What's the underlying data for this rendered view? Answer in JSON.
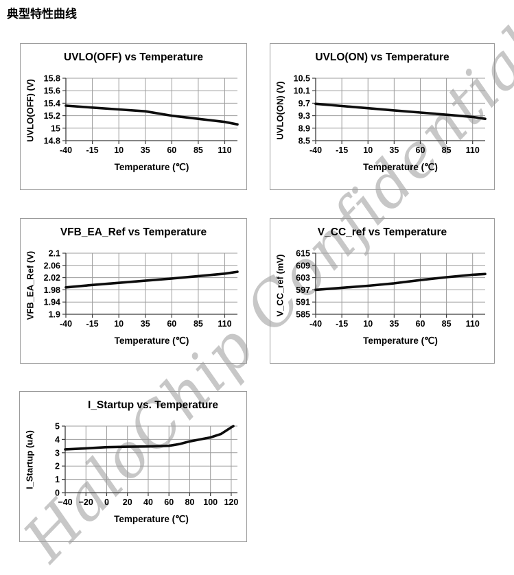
{
  "page_title": "典型特性曲线",
  "watermark": {
    "text": "HaloChip Confidential",
    "color": "#c7c7c7"
  },
  "chart_data": [
    {
      "type": "line",
      "title": "UVLO(OFF) vs Temperature",
      "xlabel": "Temperature (℃)",
      "ylabel": "UVLO(OFF) (V)",
      "xlim": [
        -40,
        122
      ],
      "ylim": [
        14.8,
        15.8
      ],
      "xticks": [
        -40,
        -15,
        10,
        35,
        60,
        85,
        110
      ],
      "yticks": [
        14.8,
        15,
        15.2,
        15.4,
        15.6,
        15.8
      ],
      "grid": true,
      "legend": false,
      "series": [
        {
          "name": "UVLO(OFF)",
          "x": [
            -40,
            -15,
            10,
            35,
            60,
            85,
            110,
            122
          ],
          "y": [
            15.36,
            15.33,
            15.3,
            15.27,
            15.2,
            15.15,
            15.1,
            15.06
          ]
        }
      ]
    },
    {
      "type": "line",
      "title": "UVLO(ON) vs Temperature",
      "xlabel": "Temperature (℃)",
      "ylabel": "UVLO(ON) (V)",
      "xlim": [
        -40,
        122
      ],
      "ylim": [
        8.5,
        10.5
      ],
      "xticks": [
        -40,
        -15,
        10,
        35,
        60,
        85,
        110
      ],
      "yticks": [
        8.5,
        8.9,
        9.3,
        9.7,
        10.1,
        10.5
      ],
      "grid": true,
      "legend": false,
      "series": [
        {
          "name": "UVLO(ON)",
          "x": [
            -40,
            -15,
            10,
            35,
            60,
            85,
            110,
            122
          ],
          "y": [
            9.68,
            9.61,
            9.54,
            9.47,
            9.4,
            9.33,
            9.26,
            9.2
          ]
        }
      ]
    },
    {
      "type": "line",
      "title": "VFB_EA_Ref vs Temperature",
      "xlabel": "Temperature (℃)",
      "ylabel": "VFB_EA_Ref (V)",
      "xlim": [
        -40,
        122
      ],
      "ylim": [
        1.9,
        2.1
      ],
      "xticks": [
        -40,
        -15,
        10,
        35,
        60,
        85,
        110
      ],
      "yticks": [
        1.9,
        1.94,
        1.98,
        2.02,
        2.06,
        2.1
      ],
      "grid": true,
      "legend": false,
      "series": [
        {
          "name": "VFB_EA_Ref",
          "x": [
            -40,
            -15,
            10,
            35,
            60,
            85,
            110,
            122
          ],
          "y": [
            1.988,
            1.996,
            2.003,
            2.01,
            2.017,
            2.025,
            2.033,
            2.039
          ]
        }
      ]
    },
    {
      "type": "line",
      "title": "V_CC_ref vs Temperature",
      "xlabel": "Temperature (℃)",
      "ylabel": "V_CC_ref (mV)",
      "xlim": [
        -40,
        122
      ],
      "ylim": [
        585,
        615
      ],
      "xticks": [
        -40,
        -15,
        10,
        35,
        60,
        85,
        110
      ],
      "yticks": [
        585,
        591,
        597,
        603,
        609,
        615
      ],
      "grid": true,
      "legend": false,
      "series": [
        {
          "name": "V_CC_ref",
          "x": [
            -40,
            -15,
            10,
            35,
            60,
            85,
            110,
            122
          ],
          "y": [
            597,
            598,
            599,
            600.2,
            601.8,
            603.2,
            604.4,
            604.8
          ]
        }
      ]
    },
    {
      "type": "line",
      "title": "I_Startup vs. Temperature",
      "xlabel": "Temperature (℃)",
      "ylabel": "I_Startup (uA)",
      "xlim": [
        -40,
        126
      ],
      "ylim": [
        0,
        5
      ],
      "xticks": [
        -40,
        -20,
        0,
        20,
        40,
        60,
        80,
        100,
        120
      ],
      "xtick_labels": [
        "−40",
        "−20",
        "0",
        "20",
        "40",
        "60",
        "80",
        "100",
        "120"
      ],
      "yticks": [
        0,
        1,
        2,
        3,
        4,
        5
      ],
      "grid": true,
      "legend": false,
      "series": [
        {
          "name": "I_Startup",
          "x": [
            -40,
            -20,
            0,
            20,
            40,
            60,
            70,
            80,
            90,
            100,
            110,
            120,
            122
          ],
          "y": [
            3.25,
            3.33,
            3.42,
            3.45,
            3.47,
            3.52,
            3.65,
            3.85,
            4.0,
            4.15,
            4.4,
            4.9,
            5.0
          ]
        }
      ]
    }
  ]
}
